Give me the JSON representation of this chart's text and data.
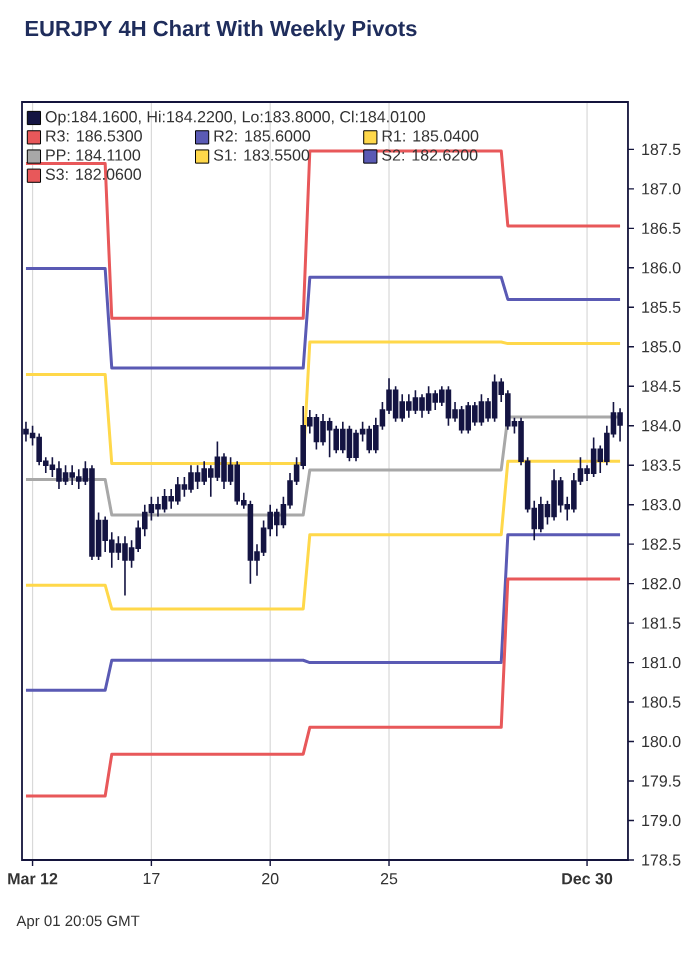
{
  "chart_data": {
    "type": "candlestick",
    "title": "EURJPY 4H Chart With Weekly Pivots",
    "annotations": [
      "Apr 01 20:05 GMT"
    ],
    "categories": [
      null,
      "Mar 12",
      null,
      null,
      null,
      null,
      null,
      null,
      null,
      null,
      null,
      null,
      null,
      null,
      null,
      null,
      null,
      null,
      null,
      "17",
      null,
      null,
      null,
      null,
      null,
      null,
      null,
      null,
      null,
      null,
      null,
      null,
      null,
      null,
      null,
      null,
      null,
      "20",
      null,
      null,
      null,
      null,
      null,
      null,
      null,
      null,
      null,
      null,
      null,
      null,
      null,
      null,
      null,
      null,
      null,
      "25",
      null,
      null,
      null,
      null,
      null,
      null,
      null,
      null,
      null,
      null,
      null,
      null,
      null,
      null,
      null,
      null,
      null,
      null,
      null,
      null,
      null,
      null,
      null,
      null,
      null,
      null,
      null,
      null,
      null,
      "Dec 30",
      null,
      null,
      null,
      null,
      null
    ],
    "ylim": [
      178.5,
      188.1
    ],
    "yticks": [
      178.5,
      {
        "value": 179,
        "label": "179.0"
      },
      179.5,
      {
        "value": 180,
        "label": "180.0"
      },
      180.5,
      {
        "value": 181,
        "label": "181.0"
      },
      181.5,
      {
        "value": 182,
        "label": "182.0"
      },
      182.5,
      {
        "value": 183,
        "label": "183.0"
      },
      183.5,
      {
        "value": 184,
        "label": "184.0"
      },
      184.5,
      {
        "value": 185,
        "label": "185.0"
      },
      185.5,
      {
        "value": 186,
        "label": "186.0"
      },
      186.5,
      {
        "value": 187,
        "label": "187.0"
      },
      187.5
    ],
    "grid": "x",
    "legend": "top left",
    "series": [
      {
        "name": "Op:184.1600, Hi:184.2200, Lo:183.8000, Cl:184.0100",
        "color": "#141442",
        "ohlc": [
          [
            183.95,
            184.05,
            183.8,
            183.9
          ],
          [
            183.9,
            184.0,
            183.75,
            183.85
          ],
          [
            183.85,
            183.9,
            183.5,
            183.55
          ],
          [
            183.55,
            183.6,
            183.4,
            183.5
          ],
          [
            183.5,
            183.6,
            183.35,
            183.45
          ],
          [
            183.45,
            183.55,
            183.2,
            183.3
          ],
          [
            183.3,
            183.5,
            183.25,
            183.4
          ],
          [
            183.4,
            183.5,
            183.25,
            183.35
          ],
          [
            183.35,
            183.45,
            183.2,
            183.3
          ],
          [
            183.3,
            183.55,
            183.25,
            183.45
          ],
          [
            183.45,
            183.5,
            182.3,
            182.35
          ],
          [
            182.35,
            182.9,
            182.3,
            182.8
          ],
          [
            182.8,
            182.85,
            182.4,
            182.55
          ],
          [
            182.55,
            182.65,
            182.2,
            182.4
          ],
          [
            182.4,
            182.6,
            182.3,
            182.5
          ],
          [
            182.5,
            182.6,
            181.85,
            182.3
          ],
          [
            182.3,
            182.55,
            182.2,
            182.45
          ],
          [
            182.45,
            182.8,
            182.4,
            182.7
          ],
          [
            182.7,
            183.0,
            182.6,
            182.9
          ],
          [
            182.9,
            183.1,
            182.8,
            183.0
          ],
          [
            183.0,
            183.1,
            182.85,
            182.95
          ],
          [
            182.95,
            183.2,
            182.9,
            183.1
          ],
          [
            183.1,
            183.2,
            182.95,
            183.05
          ],
          [
            183.05,
            183.35,
            183.0,
            183.25
          ],
          [
            183.25,
            183.35,
            183.1,
            183.2
          ],
          [
            183.2,
            183.5,
            183.15,
            183.4
          ],
          [
            183.4,
            183.5,
            183.2,
            183.3
          ],
          [
            183.3,
            183.55,
            183.25,
            183.45
          ],
          [
            183.45,
            183.5,
            183.1,
            183.35
          ],
          [
            183.35,
            183.8,
            183.3,
            183.6
          ],
          [
            183.6,
            183.65,
            183.2,
            183.3
          ],
          [
            183.3,
            183.6,
            183.25,
            183.5
          ],
          [
            183.5,
            183.55,
            183.0,
            183.05
          ],
          [
            183.05,
            183.15,
            182.95,
            183.0
          ],
          [
            183.0,
            183.05,
            182.0,
            182.3
          ],
          [
            182.3,
            182.5,
            182.1,
            182.4
          ],
          [
            182.4,
            182.8,
            182.35,
            182.7
          ],
          [
            182.7,
            183.0,
            182.6,
            182.9
          ],
          [
            182.9,
            182.95,
            182.6,
            182.75
          ],
          [
            182.75,
            183.1,
            182.7,
            183.0
          ],
          [
            183.0,
            183.4,
            182.95,
            183.3
          ],
          [
            183.3,
            183.6,
            183.25,
            183.5
          ],
          [
            183.5,
            184.25,
            183.45,
            184.0
          ],
          [
            184.0,
            184.2,
            183.9,
            184.1
          ],
          [
            184.1,
            184.15,
            183.7,
            183.8
          ],
          [
            183.8,
            184.15,
            183.75,
            184.05
          ],
          [
            184.05,
            184.1,
            183.6,
            183.95
          ],
          [
            183.95,
            184.0,
            183.65,
            183.7
          ],
          [
            183.7,
            184.05,
            183.65,
            183.95
          ],
          [
            183.95,
            184.0,
            183.55,
            183.6
          ],
          [
            183.6,
            183.95,
            183.55,
            183.9
          ],
          [
            183.9,
            184.05,
            183.8,
            183.95
          ],
          [
            183.95,
            184.0,
            183.65,
            183.7
          ],
          [
            183.7,
            184.1,
            183.65,
            184.0
          ],
          [
            184.0,
            184.3,
            183.95,
            184.2
          ],
          [
            184.2,
            184.6,
            184.15,
            184.45
          ],
          [
            184.45,
            184.5,
            184.05,
            184.1
          ],
          [
            184.1,
            184.4,
            184.05,
            184.3
          ],
          [
            184.3,
            184.4,
            184.1,
            184.2
          ],
          [
            184.2,
            184.45,
            184.15,
            184.35
          ],
          [
            184.35,
            184.4,
            184.1,
            184.2
          ],
          [
            184.2,
            184.5,
            184.15,
            184.4
          ],
          [
            184.4,
            184.45,
            184.2,
            184.3
          ],
          [
            184.3,
            184.5,
            184.25,
            184.45
          ],
          [
            184.45,
            184.5,
            184.0,
            184.1
          ],
          [
            184.1,
            184.3,
            184.05,
            184.2
          ],
          [
            184.2,
            184.25,
            183.9,
            183.95
          ],
          [
            183.95,
            184.3,
            183.9,
            184.25
          ],
          [
            184.25,
            184.3,
            184.0,
            184.05
          ],
          [
            184.05,
            184.4,
            184.0,
            184.3
          ],
          [
            184.3,
            184.35,
            184.05,
            184.1
          ],
          [
            184.1,
            184.65,
            184.05,
            184.55
          ],
          [
            184.55,
            184.6,
            184.3,
            184.4
          ],
          [
            184.4,
            184.45,
            183.95,
            184.0
          ],
          [
            184.0,
            184.1,
            183.9,
            184.05
          ],
          [
            184.05,
            184.1,
            183.5,
            183.55
          ],
          [
            183.55,
            183.6,
            182.9,
            182.95
          ],
          [
            182.95,
            183.05,
            182.55,
            182.7
          ],
          [
            182.7,
            183.1,
            182.65,
            183.0
          ],
          [
            183.0,
            183.05,
            182.75,
            182.85
          ],
          [
            182.85,
            183.45,
            182.8,
            183.3
          ],
          [
            183.3,
            183.35,
            182.9,
            183.0
          ],
          [
            183.0,
            183.1,
            182.8,
            182.95
          ],
          [
            182.95,
            183.4,
            182.9,
            183.3
          ],
          [
            183.3,
            183.6,
            183.25,
            183.45
          ],
          [
            183.45,
            183.5,
            183.3,
            183.4
          ],
          [
            183.4,
            183.85,
            183.35,
            183.7
          ],
          [
            183.7,
            183.75,
            183.4,
            183.55
          ],
          [
            183.55,
            184.0,
            183.5,
            183.9
          ],
          [
            183.9,
            184.3,
            183.85,
            184.16
          ],
          [
            184.16,
            184.22,
            183.8,
            184.01
          ]
        ]
      },
      {
        "type": "line",
        "name": "R3: 186.5300",
        "color": "#e8585a",
        "values": [
          187.32,
          187.32,
          187.32,
          187.32,
          187.32,
          187.32,
          187.32,
          187.32,
          187.32,
          187.32,
          187.32,
          187.32,
          187.32,
          185.36,
          185.36,
          185.36,
          185.36,
          185.36,
          185.36,
          185.36,
          185.36,
          185.36,
          185.36,
          185.36,
          185.36,
          185.36,
          185.36,
          185.36,
          185.36,
          185.36,
          185.36,
          185.36,
          185.36,
          185.36,
          185.36,
          185.36,
          185.36,
          185.36,
          185.36,
          185.36,
          185.36,
          185.36,
          185.36,
          187.48,
          187.48,
          187.48,
          187.48,
          187.48,
          187.48,
          187.48,
          187.48,
          187.48,
          187.48,
          187.48,
          187.48,
          187.48,
          187.48,
          187.48,
          187.48,
          187.48,
          187.48,
          187.48,
          187.48,
          187.48,
          187.48,
          187.48,
          187.48,
          187.48,
          187.48,
          187.48,
          187.48,
          187.48,
          187.48,
          186.53,
          186.53,
          186.53,
          186.53,
          186.53,
          186.53,
          186.53,
          186.53,
          186.53,
          186.53,
          186.53,
          186.53,
          186.53,
          186.53,
          186.53,
          186.53,
          186.53,
          186.53
        ]
      },
      {
        "type": "line",
        "name": "R2: 185.6000",
        "color": "#5a5ab4",
        "values": [
          185.99,
          185.99,
          185.99,
          185.99,
          185.99,
          185.99,
          185.99,
          185.99,
          185.99,
          185.99,
          185.99,
          185.99,
          185.99,
          184.73,
          184.73,
          184.73,
          184.73,
          184.73,
          184.73,
          184.73,
          184.73,
          184.73,
          184.73,
          184.73,
          184.73,
          184.73,
          184.73,
          184.73,
          184.73,
          184.73,
          184.73,
          184.73,
          184.73,
          184.73,
          184.73,
          184.73,
          184.73,
          184.73,
          184.73,
          184.73,
          184.73,
          184.73,
          184.73,
          185.88,
          185.88,
          185.88,
          185.88,
          185.88,
          185.88,
          185.88,
          185.88,
          185.88,
          185.88,
          185.88,
          185.88,
          185.88,
          185.88,
          185.88,
          185.88,
          185.88,
          185.88,
          185.88,
          185.88,
          185.88,
          185.88,
          185.88,
          185.88,
          185.88,
          185.88,
          185.88,
          185.88,
          185.88,
          185.88,
          185.6,
          185.6,
          185.6,
          185.6,
          185.6,
          185.6,
          185.6,
          185.6,
          185.6,
          185.6,
          185.6,
          185.6,
          185.6,
          185.6,
          185.6,
          185.6,
          185.6,
          185.6
        ]
      },
      {
        "type": "line",
        "name": "R1: 185.0400",
        "color": "#ffd84a",
        "values": [
          184.65,
          184.65,
          184.65,
          184.65,
          184.65,
          184.65,
          184.65,
          184.65,
          184.65,
          184.65,
          184.65,
          184.65,
          184.65,
          183.52,
          183.52,
          183.52,
          183.52,
          183.52,
          183.52,
          183.52,
          183.52,
          183.52,
          183.52,
          183.52,
          183.52,
          183.52,
          183.52,
          183.52,
          183.52,
          183.52,
          183.52,
          183.52,
          183.52,
          183.52,
          183.52,
          183.52,
          183.52,
          183.52,
          183.52,
          183.52,
          183.52,
          183.52,
          183.52,
          185.06,
          185.06,
          185.06,
          185.06,
          185.06,
          185.06,
          185.06,
          185.06,
          185.06,
          185.06,
          185.06,
          185.06,
          185.06,
          185.06,
          185.06,
          185.06,
          185.06,
          185.06,
          185.06,
          185.06,
          185.06,
          185.06,
          185.06,
          185.06,
          185.06,
          185.06,
          185.06,
          185.06,
          185.06,
          185.06,
          185.04,
          185.04,
          185.04,
          185.04,
          185.04,
          185.04,
          185.04,
          185.04,
          185.04,
          185.04,
          185.04,
          185.04,
          185.04,
          185.04,
          185.04,
          185.04,
          185.04,
          185.04
        ]
      },
      {
        "type": "line",
        "name": "PP: 184.1100",
        "color": "#a8a8a8",
        "values": [
          183.32,
          183.32,
          183.32,
          183.32,
          183.32,
          183.32,
          183.32,
          183.32,
          183.32,
          183.32,
          183.32,
          183.32,
          183.32,
          182.87,
          182.87,
          182.87,
          182.87,
          182.87,
          182.87,
          182.87,
          182.87,
          182.87,
          182.87,
          182.87,
          182.87,
          182.87,
          182.87,
          182.87,
          182.87,
          182.87,
          182.87,
          182.87,
          182.87,
          182.87,
          182.87,
          182.87,
          182.87,
          182.87,
          182.87,
          182.87,
          182.87,
          182.87,
          182.87,
          183.44,
          183.44,
          183.44,
          183.44,
          183.44,
          183.44,
          183.44,
          183.44,
          183.44,
          183.44,
          183.44,
          183.44,
          183.44,
          183.44,
          183.44,
          183.44,
          183.44,
          183.44,
          183.44,
          183.44,
          183.44,
          183.44,
          183.44,
          183.44,
          183.44,
          183.44,
          183.44,
          183.44,
          183.44,
          183.44,
          184.11,
          184.11,
          184.11,
          184.11,
          184.11,
          184.11,
          184.11,
          184.11,
          184.11,
          184.11,
          184.11,
          184.11,
          184.11,
          184.11,
          184.11,
          184.11,
          184.11,
          184.11
        ]
      },
      {
        "type": "line",
        "name": "S1: 183.5500",
        "color": "#ffd84a",
        "values": [
          181.98,
          181.98,
          181.98,
          181.98,
          181.98,
          181.98,
          181.98,
          181.98,
          181.98,
          181.98,
          181.98,
          181.98,
          181.98,
          181.68,
          181.68,
          181.68,
          181.68,
          181.68,
          181.68,
          181.68,
          181.68,
          181.68,
          181.68,
          181.68,
          181.68,
          181.68,
          181.68,
          181.68,
          181.68,
          181.68,
          181.68,
          181.68,
          181.68,
          181.68,
          181.68,
          181.68,
          181.68,
          181.68,
          181.68,
          181.68,
          181.68,
          181.68,
          181.68,
          182.62,
          182.62,
          182.62,
          182.62,
          182.62,
          182.62,
          182.62,
          182.62,
          182.62,
          182.62,
          182.62,
          182.62,
          182.62,
          182.62,
          182.62,
          182.62,
          182.62,
          182.62,
          182.62,
          182.62,
          182.62,
          182.62,
          182.62,
          182.62,
          182.62,
          182.62,
          182.62,
          182.62,
          182.62,
          182.62,
          183.55,
          183.55,
          183.55,
          183.55,
          183.55,
          183.55,
          183.55,
          183.55,
          183.55,
          183.55,
          183.55,
          183.55,
          183.55,
          183.55,
          183.55,
          183.55,
          183.55,
          183.55
        ]
      },
      {
        "type": "line",
        "name": "S2: 182.6200",
        "color": "#5a5ab4",
        "values": [
          180.65,
          180.65,
          180.65,
          180.65,
          180.65,
          180.65,
          180.65,
          180.65,
          180.65,
          180.65,
          180.65,
          180.65,
          180.65,
          181.03,
          181.03,
          181.03,
          181.03,
          181.03,
          181.03,
          181.03,
          181.03,
          181.03,
          181.03,
          181.03,
          181.03,
          181.03,
          181.03,
          181.03,
          181.03,
          181.03,
          181.03,
          181.03,
          181.03,
          181.03,
          181.03,
          181.03,
          181.03,
          181.03,
          181.03,
          181.03,
          181.03,
          181.03,
          181.03,
          181.0,
          181.0,
          181.0,
          181.0,
          181.0,
          181.0,
          181.0,
          181.0,
          181.0,
          181.0,
          181.0,
          181.0,
          181.0,
          181.0,
          181.0,
          181.0,
          181.0,
          181.0,
          181.0,
          181.0,
          181.0,
          181.0,
          181.0,
          181.0,
          181.0,
          181.0,
          181.0,
          181.0,
          181.0,
          181.0,
          182.62,
          182.62,
          182.62,
          182.62,
          182.62,
          182.62,
          182.62,
          182.62,
          182.62,
          182.62,
          182.62,
          182.62,
          182.62,
          182.62,
          182.62,
          182.62,
          182.62,
          182.62
        ]
      },
      {
        "type": "line",
        "name": "S3: 182.0600",
        "color": "#e8585a",
        "values": [
          179.31,
          179.31,
          179.31,
          179.31,
          179.31,
          179.31,
          179.31,
          179.31,
          179.31,
          179.31,
          179.31,
          179.31,
          179.31,
          179.84,
          179.84,
          179.84,
          179.84,
          179.84,
          179.84,
          179.84,
          179.84,
          179.84,
          179.84,
          179.84,
          179.84,
          179.84,
          179.84,
          179.84,
          179.84,
          179.84,
          179.84,
          179.84,
          179.84,
          179.84,
          179.84,
          179.84,
          179.84,
          179.84,
          179.84,
          179.84,
          179.84,
          179.84,
          179.84,
          180.18,
          180.18,
          180.18,
          180.18,
          180.18,
          180.18,
          180.18,
          180.18,
          180.18,
          180.18,
          180.18,
          180.18,
          180.18,
          180.18,
          180.18,
          180.18,
          180.18,
          180.18,
          180.18,
          180.18,
          180.18,
          180.18,
          180.18,
          180.18,
          180.18,
          180.18,
          180.18,
          180.18,
          180.18,
          180.18,
          182.06,
          182.06,
          182.06,
          182.06,
          182.06,
          182.06,
          182.06,
          182.06,
          182.06,
          182.06,
          182.06,
          182.06,
          182.06,
          182.06,
          182.06,
          182.06,
          182.06,
          182.06
        ]
      }
    ]
  }
}
